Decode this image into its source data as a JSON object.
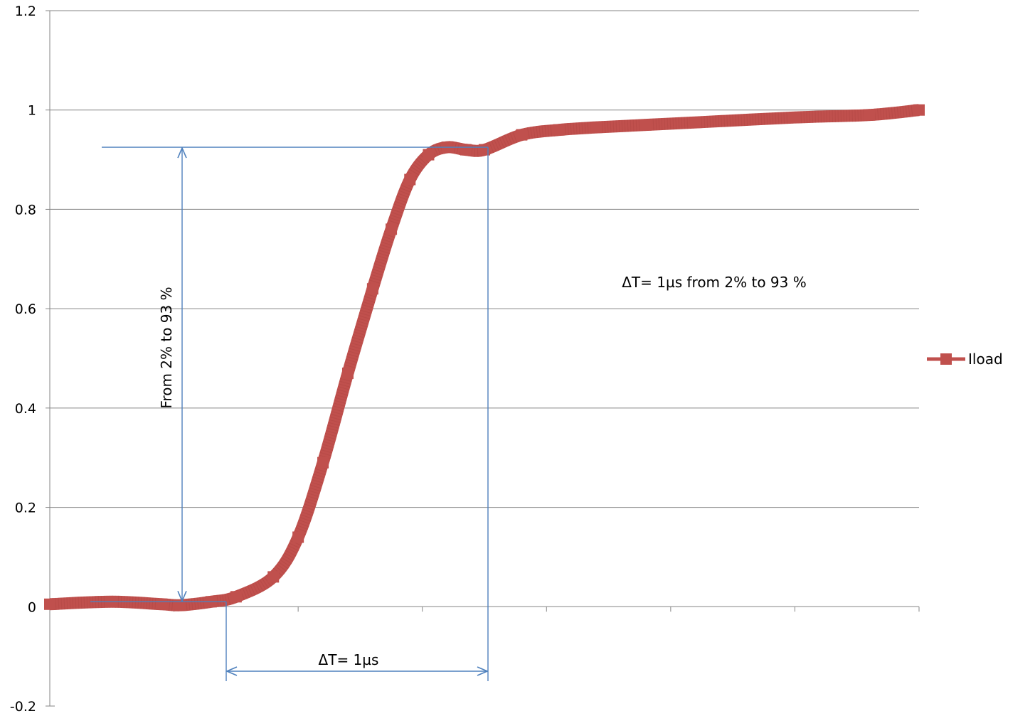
{
  "chart_data": {
    "type": "line",
    "title": "",
    "xlabel": "",
    "ylabel": "",
    "ylim": [
      -0.2,
      1.2
    ],
    "yticks": [
      -0.2,
      0,
      0.2,
      0.4,
      0.6,
      0.8,
      1,
      1.2
    ],
    "ytick_labels": [
      "-0.2",
      "0",
      "0.2",
      "0.4",
      "0.6",
      "0.8",
      "1",
      "1.2"
    ],
    "xlim": [
      0,
      7
    ],
    "xticks": [
      0,
      1,
      2,
      3,
      4,
      5,
      6,
      7
    ],
    "grid": true,
    "legend": "right",
    "colors": {
      "series": "#c0504d",
      "annotation": "#4f81bd",
      "grid": "#868686"
    },
    "series": [
      {
        "name": "Iload",
        "x": [
          0,
          0.5,
          0.9,
          1.05,
          1.3,
          1.5,
          1.8,
          2.0,
          2.2,
          2.4,
          2.6,
          2.75,
          2.9,
          3.05,
          3.2,
          3.35,
          3.5,
          3.8,
          4.1,
          4.4,
          4.8,
          5.2,
          6.0,
          6.6,
          7.0
        ],
        "y": [
          0.005,
          0.01,
          0.005,
          0.003,
          0.01,
          0.02,
          0.06,
          0.14,
          0.29,
          0.47,
          0.64,
          0.76,
          0.86,
          0.91,
          0.925,
          0.92,
          0.92,
          0.95,
          0.96,
          0.965,
          0.97,
          0.975,
          0.985,
          0.99,
          1.0
        ]
      }
    ],
    "annotations": {
      "vertical_label": "From 2% to 93 %",
      "horizontal_label": "ΔT= 1µs",
      "note": "ΔT= 1µs from 2% to 93 %"
    }
  }
}
